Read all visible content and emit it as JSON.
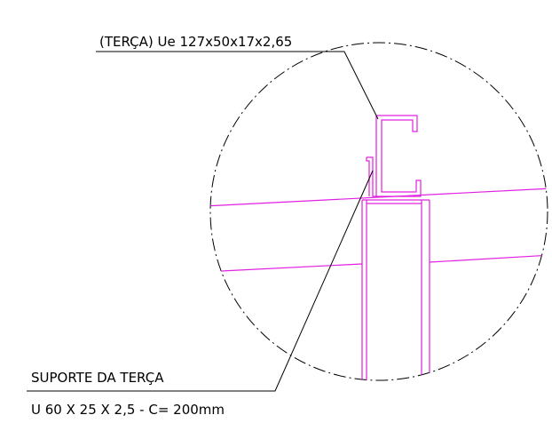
{
  "labels": {
    "purlin": "(TERÇA) Ue 127x50x17x2,65",
    "support_title": "SUPORTE DA TERÇA",
    "support_spec": "U 60 X 25 X 2,5 - C= 200mm"
  }
}
